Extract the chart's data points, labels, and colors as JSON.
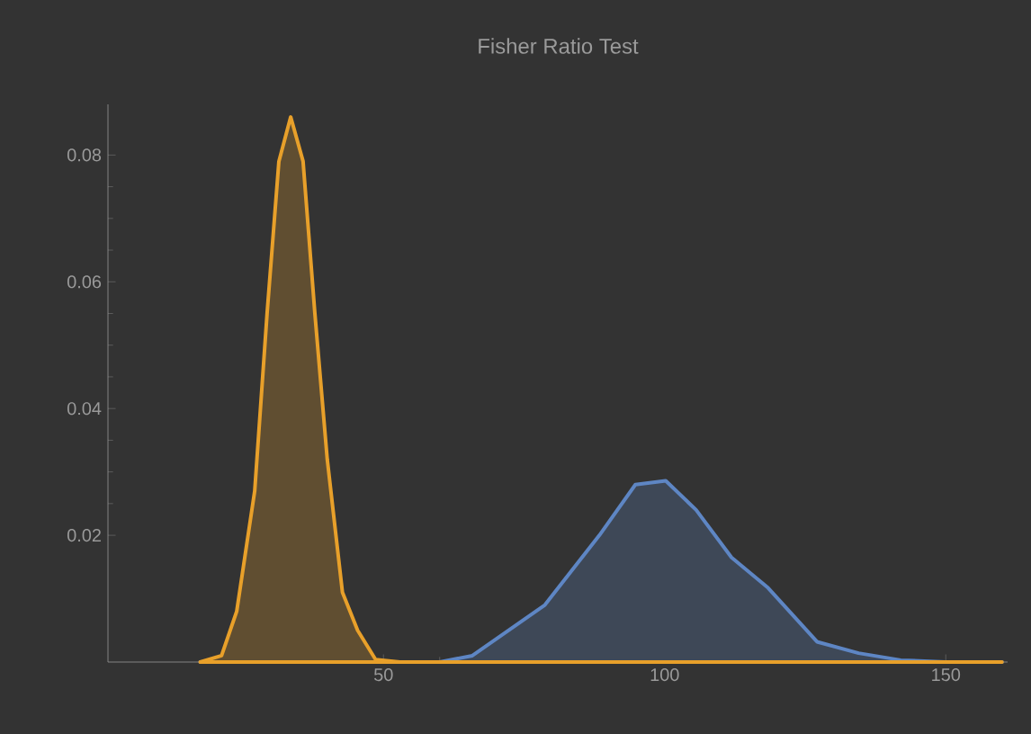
{
  "chart_data": {
    "type": "area",
    "title": "Fisher Ratio Test",
    "x": [
      17.4,
      21.2,
      23.9,
      27.1,
      29.3,
      31.4,
      33.5,
      35.7,
      37.8,
      40,
      42.7,
      45.4,
      48.6,
      52.9,
      60,
      65.8,
      78.7,
      88.4,
      94.8,
      100.2,
      105.6,
      111.9,
      118.4,
      127.1,
      134.5,
      142,
      150,
      160
    ],
    "series": [
      {
        "color": "#5e86c4",
        "values": [
          0,
          0,
          0,
          0,
          0,
          0,
          0,
          0,
          0,
          0,
          0,
          0,
          0,
          0,
          0,
          0.001,
          0.009,
          0.02,
          0.028,
          0.0286,
          0.024,
          0.0165,
          0.0117,
          0.0032,
          0.0014,
          0.0003,
          0,
          0
        ]
      },
      {
        "color": "#e8a02a",
        "values": [
          0,
          0.001,
          0.008,
          0.027,
          0.055,
          0.079,
          0.086,
          0.079,
          0.055,
          0.032,
          0.011,
          0.005,
          0.0004,
          0,
          0,
          0,
          0,
          0,
          0,
          0,
          0,
          0,
          0,
          0,
          0,
          0,
          0,
          0
        ]
      }
    ],
    "xlim": [
      1,
      161
    ],
    "ylim": [
      0,
      0.088
    ],
    "xticks": [
      50,
      100,
      150
    ],
    "yticks": [
      0.02,
      0.04,
      0.06,
      0.08
    ]
  }
}
